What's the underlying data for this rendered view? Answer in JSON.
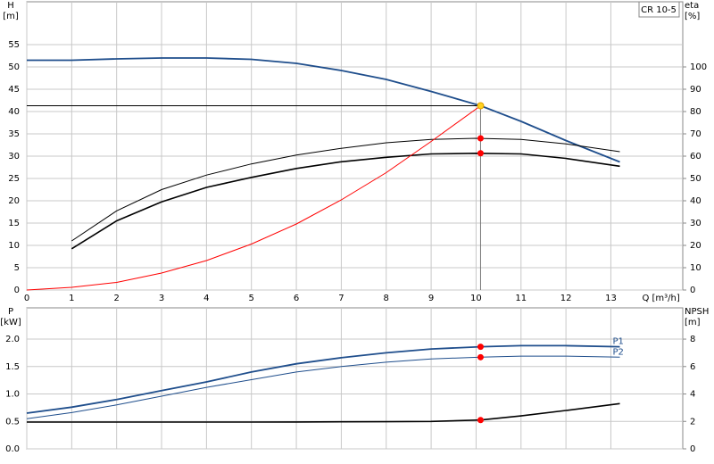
{
  "chart_data": [
    {
      "type": "line",
      "label": "CR 10-5",
      "xlabel": "Q [m³/h]",
      "ylabel": [
        "H",
        "[m]"
      ],
      "y2label": [
        "eta",
        "[%]"
      ],
      "xlim": [
        0,
        14.6
      ],
      "xticks": [
        0,
        1,
        2,
        3,
        4,
        5,
        6,
        7,
        8,
        9,
        10,
        11,
        12,
        13
      ],
      "ylim": [
        0,
        64.6
      ],
      "yticks": [
        0,
        5,
        10,
        15,
        20,
        25,
        30,
        35,
        40,
        45,
        50,
        55
      ],
      "y2lim": [
        0,
        129.2
      ],
      "y2ticks": [
        0,
        10,
        20,
        30,
        40,
        50,
        60,
        70,
        80,
        90,
        100
      ],
      "grid": true,
      "series": [
        {
          "color": "#1f4e8c",
          "width": 1.8,
          "axis": "y",
          "x": [
            0,
            1,
            2,
            3,
            4,
            5,
            6,
            7,
            8,
            9,
            10.1,
            11,
            12,
            13.2
          ],
          "values": [
            51.5,
            51.5,
            51.8,
            52,
            52,
            51.7,
            50.8,
            49.2,
            47.2,
            44.5,
            41.3,
            37.8,
            33.5,
            28.7
          ]
        },
        {
          "color": "#000000",
          "width": 1,
          "axis": "y2",
          "x": [
            1,
            2,
            3,
            4,
            5,
            6,
            7,
            8,
            9,
            10,
            11,
            12,
            13.2
          ],
          "values": [
            22,
            35.5,
            45,
            51.5,
            56.5,
            60.5,
            63.5,
            66,
            67.5,
            68,
            67.5,
            65.5,
            62
          ]
        },
        {
          "color": "#000000",
          "width": 1.6,
          "axis": "y2",
          "x": [
            1,
            2,
            3,
            4,
            5,
            6,
            7,
            8,
            9,
            10,
            11,
            12,
            13.2
          ],
          "values": [
            18.5,
            31,
            39.5,
            46,
            50.5,
            54.5,
            57.5,
            59.5,
            61,
            61.3,
            61,
            59,
            55.5
          ]
        },
        {
          "color": "#ff0000",
          "width": 1,
          "axis": "y",
          "x": [
            0,
            1,
            2,
            3,
            4,
            5,
            6,
            7,
            8,
            9,
            10.1
          ],
          "values": [
            0,
            0.6,
            1.7,
            3.8,
            6.6,
            10.3,
            14.8,
            20.2,
            26.3,
            33.3,
            41.3
          ]
        }
      ],
      "points": [
        {
          "x": 10.1,
          "y": 41.3,
          "axis": "y",
          "color": "#ffd21f",
          "duty_lines": true
        },
        {
          "x": 10.1,
          "y": 68,
          "axis": "y2",
          "color": "#ff0000"
        },
        {
          "x": 10.1,
          "y": 61.3,
          "axis": "y2",
          "color": "#ff0000"
        }
      ]
    },
    {
      "type": "line",
      "ylabel": [
        "P",
        "[kW]"
      ],
      "y2label": [
        "NPSH",
        "[m]"
      ],
      "xlim": [
        0,
        14.6
      ],
      "xticks": [
        0,
        1,
        2,
        3,
        4,
        5,
        6,
        7,
        8,
        9,
        10,
        11,
        12,
        13
      ],
      "ylim": [
        0,
        2.57
      ],
      "yticks": [
        {
          "value": 0,
          "label": "0.0"
        },
        {
          "value": 0.5,
          "label": "0.5"
        },
        {
          "value": 1,
          "label": "1.0"
        },
        {
          "value": 1.5,
          "label": "1.5"
        },
        {
          "value": 2,
          "label": "2.0"
        }
      ],
      "y2lim": [
        0,
        10.28
      ],
      "y2ticks": [
        0,
        2,
        4,
        6,
        8
      ],
      "grid": true,
      "series": [
        {
          "name": "P1",
          "color": "#1f4e8c",
          "width": 1.8,
          "axis": "y",
          "x": [
            0,
            1,
            2,
            3,
            4,
            5,
            6,
            7,
            8,
            9,
            10.1,
            11,
            12,
            13.2
          ],
          "values": [
            0.65,
            0.76,
            0.9,
            1.06,
            1.22,
            1.4,
            1.55,
            1.66,
            1.75,
            1.82,
            1.86,
            1.88,
            1.88,
            1.86
          ]
        },
        {
          "name": "P2",
          "color": "#1f4e8c",
          "width": 1,
          "axis": "y",
          "x": [
            0,
            1,
            2,
            3,
            4,
            5,
            6,
            7,
            8,
            9,
            10.1,
            11,
            12,
            13.2
          ],
          "values": [
            0.55,
            0.66,
            0.8,
            0.96,
            1.12,
            1.26,
            1.4,
            1.5,
            1.58,
            1.64,
            1.67,
            1.69,
            1.69,
            1.67
          ]
        },
        {
          "color": "#000000",
          "width": 1.6,
          "axis": "y2",
          "x": [
            0,
            1,
            2,
            3,
            4,
            5,
            6,
            7,
            8,
            9,
            10.1,
            11,
            12,
            13.2
          ],
          "values": [
            1.95,
            1.95,
            1.95,
            1.95,
            1.95,
            1.95,
            1.96,
            1.97,
            1.98,
            2.0,
            2.1,
            2.4,
            2.8,
            3.3
          ]
        }
      ],
      "points": [
        {
          "x": 10.1,
          "y": 1.86,
          "axis": "y",
          "color": "#ff0000"
        },
        {
          "x": 10.1,
          "y": 1.67,
          "axis": "y",
          "color": "#ff0000"
        },
        {
          "x": 10.1,
          "y": 2.1,
          "axis": "y2",
          "color": "#ff0000"
        }
      ]
    }
  ]
}
